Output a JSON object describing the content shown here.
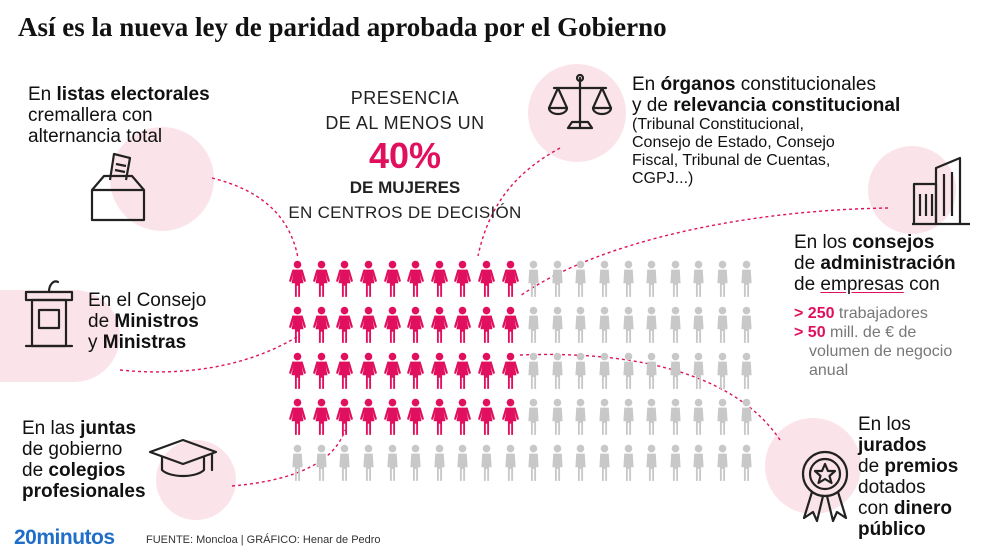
{
  "title": "Así es la nueva ley de paridad aprobada por el Gobierno",
  "center": {
    "line1": "PRESENCIA",
    "line2": "DE AL MENOS UN",
    "percent": "40%",
    "line3": "DE MUJERES",
    "line4": "EN CENTROS DE DECISIÓN"
  },
  "figures": {
    "total": 100,
    "women": 40,
    "columns": 20,
    "women_color": "#e0105f",
    "men_color": "#c8c8c8"
  },
  "listas": {
    "pre": "En ",
    "bold": "listas electorales",
    "line2": "cremallera con",
    "line3": "alternancia total",
    "icon": "ballot-box-icon"
  },
  "organos": {
    "pre": "En ",
    "bold1": "órganos",
    "post1": " constitucionales",
    "pre2": "y de ",
    "bold2": "relevancia constitucional",
    "sub1": "(Tribunal Constitucional,",
    "sub2": "Consejo de Estado, Consejo",
    "sub3": "Fiscal, Tribunal de Cuentas,",
    "sub4": "CGPJ...)",
    "icon": "scales-icon"
  },
  "consejos": {
    "pre": "En los ",
    "bold1": "consejos",
    "pre2": "de ",
    "bold2": "administración",
    "pre3": "de ",
    "mark": "empresas",
    "post3": " con",
    "c1_bold": "> 250",
    "c1": " trabajadores",
    "c2_bold": "> 50",
    "c2": " mill. de € de",
    "c2b": "volumen de negocio",
    "c2c": "anual",
    "icon": "building-icon"
  },
  "ministros": {
    "pre": "En el Consejo",
    "pre2": "de ",
    "bold1": "Ministros",
    "pre3": "y ",
    "bold2": "Ministras",
    "icon": "podium-icon"
  },
  "juntas": {
    "pre": "En las ",
    "bold1": "juntas",
    "line2": "de gobierno",
    "pre3": "de ",
    "bold2": "colegios",
    "bold3": "profesionales",
    "icon": "graduation-cap-icon"
  },
  "jurados": {
    "l1": "En los",
    "bold1": "jurados",
    "pre3": "de ",
    "bold2": "premios",
    "l4": "dotados",
    "pre5": "con ",
    "bold3": "dinero",
    "bold4": "público",
    "icon": "award-medal-icon"
  },
  "footer": {
    "logo": "20minutos",
    "source": "FUENTE: Moncloa  |  GRÁFICO: Henar de Pedro"
  }
}
